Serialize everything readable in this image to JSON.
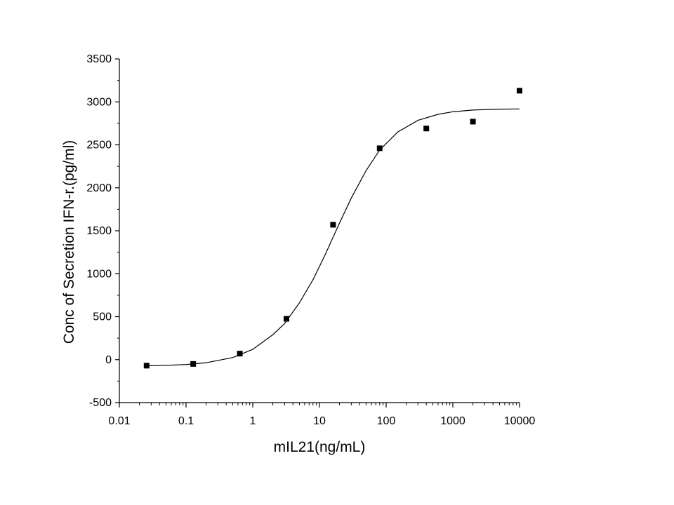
{
  "chart_data": {
    "type": "scatter",
    "title": "",
    "xlabel": "mIL21(ng/mL)",
    "ylabel": "Conc of Secretion IFN-r.(pg/ml)",
    "x_scale": "log",
    "xlim": [
      0.01,
      10000
    ],
    "ylim": [
      -500,
      3500
    ],
    "x_ticks": [
      0.01,
      0.1,
      1,
      10,
      100,
      1000,
      10000
    ],
    "x_tick_labels": [
      "0.01",
      "0.1",
      "1",
      "10",
      "100",
      "1000",
      "10000"
    ],
    "y_ticks": [
      -500,
      0,
      500,
      1000,
      1500,
      2000,
      2500,
      3000,
      3500
    ],
    "y_tick_labels": [
      "-500",
      "0",
      "500",
      "1000",
      "1500",
      "2000",
      "2500",
      "3000",
      "3500"
    ],
    "grid": false,
    "series": [
      {
        "marker": "square",
        "color": "#000000",
        "x": [
          0.0256,
          0.128,
          0.64,
          3.2,
          16,
          80,
          400,
          2000,
          10000
        ],
        "y": [
          -70,
          -50,
          70,
          475,
          1570,
          2460,
          2690,
          2770,
          3130
        ]
      }
    ],
    "fit_curve": {
      "model": "4PL",
      "color": "#000000",
      "x": [
        0.0256,
        0.05,
        0.1,
        0.2,
        0.5,
        1,
        2,
        3,
        5,
        8,
        12,
        20,
        30,
        50,
        80,
        150,
        300,
        600,
        1000,
        2000,
        5000,
        10000
      ],
      "y": [
        -72,
        -67,
        -57,
        -36,
        24,
        120,
        290,
        420,
        660,
        930,
        1210,
        1590,
        1880,
        2200,
        2440,
        2650,
        2785,
        2855,
        2885,
        2905,
        2915,
        2918
      ]
    }
  }
}
